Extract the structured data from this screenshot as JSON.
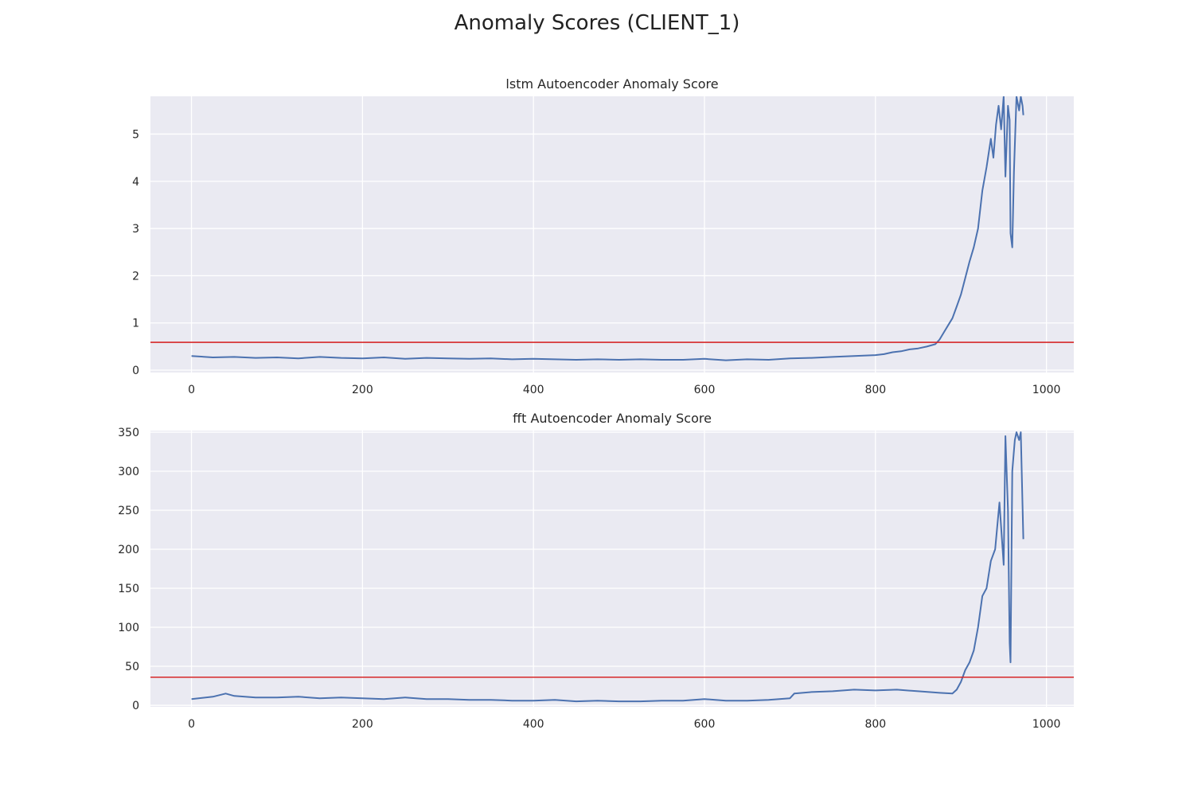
{
  "figure": {
    "title": "Anomaly Scores (CLIENT_1)"
  },
  "style": {
    "panel_bg": "#eaeaf2",
    "grid": "#ffffff",
    "line": "#4c72b0",
    "threshold": "#d62728"
  },
  "chart_data": [
    {
      "type": "line",
      "title": "lstm Autoencoder Anomaly Score",
      "xlabel": "",
      "ylabel": "",
      "xlim": [
        -48,
        1032
      ],
      "ylim": [
        -0.05,
        5.8
      ],
      "xticks": [
        0,
        200,
        400,
        600,
        800,
        1000
      ],
      "yticks": [
        0,
        1,
        2,
        3,
        4,
        5
      ],
      "grid": true,
      "threshold": 0.59,
      "series": [
        {
          "x": [
            0,
            25,
            50,
            75,
            100,
            125,
            150,
            175,
            200,
            225,
            250,
            275,
            300,
            325,
            350,
            375,
            400,
            425,
            450,
            475,
            500,
            525,
            550,
            575,
            600,
            625,
            650,
            675,
            700,
            725,
            750,
            775,
            800,
            810,
            820,
            830,
            840,
            850,
            860,
            870,
            875,
            880,
            885,
            890,
            895,
            900,
            905,
            910,
            915,
            920,
            925,
            930,
            935,
            938,
            941,
            944,
            947,
            950,
            952,
            955,
            957,
            958,
            960,
            962,
            965,
            968,
            970,
            972,
            973
          ],
          "y": [
            0.3,
            0.27,
            0.28,
            0.26,
            0.27,
            0.25,
            0.28,
            0.26,
            0.25,
            0.27,
            0.24,
            0.26,
            0.25,
            0.24,
            0.25,
            0.23,
            0.24,
            0.23,
            0.22,
            0.23,
            0.22,
            0.23,
            0.22,
            0.22,
            0.24,
            0.21,
            0.23,
            0.22,
            0.25,
            0.26,
            0.28,
            0.3,
            0.32,
            0.34,
            0.38,
            0.4,
            0.44,
            0.46,
            0.5,
            0.55,
            0.65,
            0.8,
            0.95,
            1.1,
            1.35,
            1.6,
            1.95,
            2.3,
            2.6,
            3.0,
            3.8,
            4.3,
            4.9,
            4.5,
            5.2,
            5.6,
            5.1,
            5.8,
            4.1,
            5.6,
            5.3,
            2.9,
            2.6,
            4.2,
            5.8,
            5.5,
            5.8,
            5.6,
            5.4
          ]
        }
      ]
    },
    {
      "type": "line",
      "title": "fft Autoencoder Anomaly Score",
      "xlabel": "",
      "ylabel": "",
      "xlim": [
        -48,
        1032
      ],
      "ylim": [
        -2,
        352
      ],
      "xticks": [
        0,
        200,
        400,
        600,
        800,
        1000
      ],
      "yticks": [
        0,
        50,
        100,
        150,
        200,
        250,
        300,
        350
      ],
      "grid": true,
      "threshold": 36,
      "series": [
        {
          "x": [
            0,
            25,
            40,
            50,
            75,
            100,
            125,
            150,
            175,
            200,
            225,
            250,
            275,
            300,
            325,
            350,
            375,
            400,
            425,
            450,
            475,
            500,
            525,
            550,
            575,
            600,
            625,
            650,
            675,
            700,
            705,
            725,
            750,
            775,
            800,
            825,
            850,
            875,
            890,
            895,
            900,
            905,
            910,
            915,
            920,
            925,
            930,
            935,
            940,
            945,
            950,
            952,
            955,
            957,
            958,
            960,
            963,
            965,
            968,
            970,
            973
          ],
          "y": [
            8,
            11,
            15,
            12,
            10,
            10,
            11,
            9,
            10,
            9,
            8,
            10,
            8,
            8,
            7,
            7,
            6,
            6,
            7,
            5,
            6,
            5,
            5,
            6,
            6,
            8,
            6,
            6,
            7,
            9,
            15,
            17,
            18,
            20,
            19,
            20,
            18,
            16,
            15,
            20,
            30,
            45,
            55,
            70,
            100,
            140,
            150,
            185,
            200,
            260,
            180,
            345,
            250,
            80,
            55,
            300,
            340,
            350,
            340,
            350,
            213
          ]
        }
      ]
    }
  ]
}
